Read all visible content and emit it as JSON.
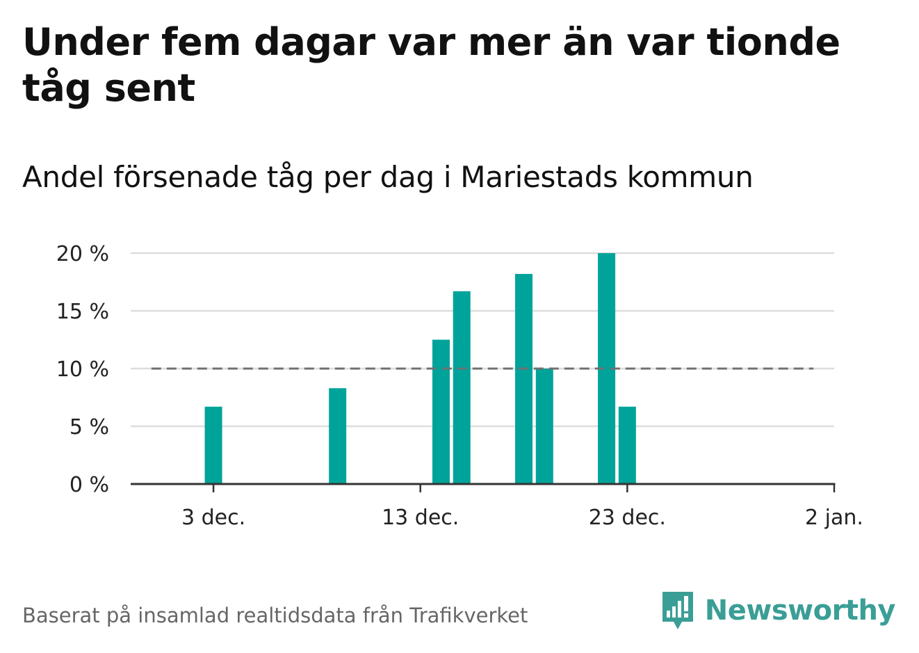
{
  "header": {
    "title": "Under fem dagar var mer än var tionde tåg sent",
    "subtitle": "Andel försenade tåg per dag i Mariestads kommun"
  },
  "footer": {
    "note": "Baserat på insamlad realtidsdata från Trafikverket",
    "brand": "Newsworthy",
    "brand_icon": "bar-chart-speech-bubble-icon"
  },
  "colors": {
    "bar": "#00a39a",
    "reference_line": "#707070",
    "grid": "#dddddd",
    "axis": "#333333",
    "brand": "#3a9e96"
  },
  "chart_data": {
    "type": "bar",
    "title": "",
    "xlabel": "",
    "ylabel": "",
    "x_unit": "date",
    "ylim": [
      0,
      20
    ],
    "grid": true,
    "y_ticks": [
      {
        "value": 0,
        "label": "0 %"
      },
      {
        "value": 5,
        "label": "5 %"
      },
      {
        "value": 10,
        "label": "10 %"
      },
      {
        "value": 15,
        "label": "15 %"
      },
      {
        "value": 20,
        "label": "20 %"
      }
    ],
    "x_range": [
      "2018-11-29",
      "2019-01-02"
    ],
    "x_ticks": [
      {
        "date": "2018-12-03",
        "label": "3 dec."
      },
      {
        "date": "2018-12-13",
        "label": "13 dec."
      },
      {
        "date": "2018-12-23",
        "label": "23 dec."
      },
      {
        "date": "2019-01-02",
        "label": "2 jan."
      }
    ],
    "bars": [
      {
        "date": "2018-12-03",
        "value": 6.7
      },
      {
        "date": "2018-12-09",
        "value": 8.3
      },
      {
        "date": "2018-12-14",
        "value": 12.5
      },
      {
        "date": "2018-12-15",
        "value": 16.7
      },
      {
        "date": "2018-12-18",
        "value": 18.2
      },
      {
        "date": "2018-12-19",
        "value": 10.0
      },
      {
        "date": "2018-12-22",
        "value": 20.0
      },
      {
        "date": "2018-12-23",
        "value": 6.7
      }
    ],
    "reference_line": {
      "value": 10,
      "from": "2018-11-30",
      "to": "2019-01-01",
      "style": "dashed"
    }
  }
}
